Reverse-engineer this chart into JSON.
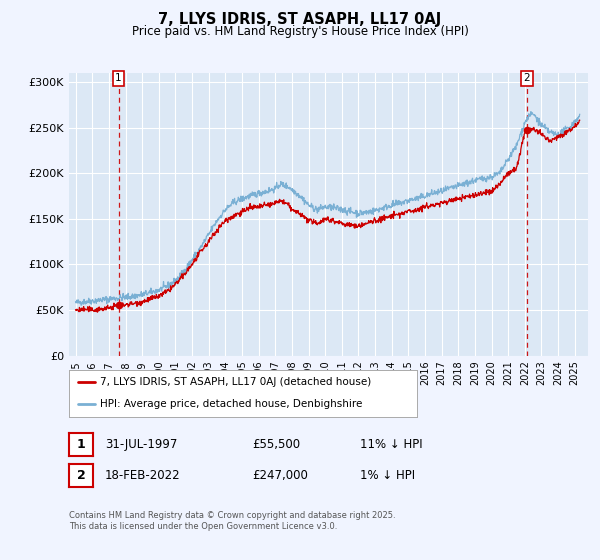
{
  "title": "7, LLYS IDRIS, ST ASAPH, LL17 0AJ",
  "subtitle": "Price paid vs. HM Land Registry's House Price Index (HPI)",
  "legend_label_red": "7, LLYS IDRIS, ST ASAPH, LL17 0AJ (detached house)",
  "legend_label_blue": "HPI: Average price, detached house, Denbighshire",
  "annotation1_date": "31-JUL-1997",
  "annotation1_price": "£55,500",
  "annotation1_hpi": "11% ↓ HPI",
  "annotation2_date": "18-FEB-2022",
  "annotation2_price": "£247,000",
  "annotation2_hpi": "1% ↓ HPI",
  "footnote": "Contains HM Land Registry data © Crown copyright and database right 2025.\nThis data is licensed under the Open Government Licence v3.0.",
  "hpi_color": "#7ab0d4",
  "price_color": "#cc0000",
  "dashed_color": "#cc0000",
  "background_color": "#f0f4ff",
  "plot_bg_color": "#dce8f5",
  "grid_color": "#ffffff",
  "ylim": [
    0,
    310000
  ],
  "yticks": [
    0,
    50000,
    100000,
    150000,
    200000,
    250000,
    300000
  ],
  "ytick_labels": [
    "£0",
    "£50K",
    "£100K",
    "£150K",
    "£200K",
    "£250K",
    "£300K"
  ],
  "sale1_x": 1997.58,
  "sale1_y": 55500,
  "sale2_x": 2022.13,
  "sale2_y": 247000,
  "xmin": 1994.6,
  "xmax": 2025.8
}
